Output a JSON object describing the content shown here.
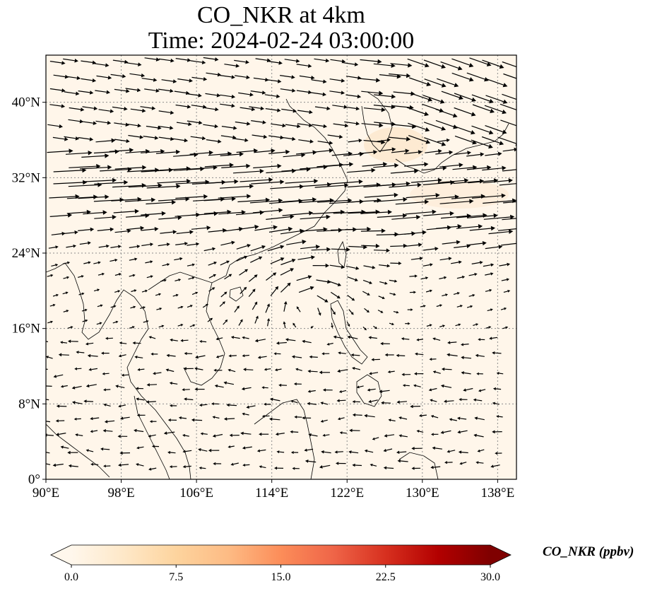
{
  "title": {
    "line1": "CO_NKR at 4km",
    "line2": "Time: 2024-02-24 03:00:00"
  },
  "map": {
    "lon_range": [
      90,
      140
    ],
    "lat_range": [
      0,
      45
    ],
    "lon_ticks": [
      {
        "value": 90,
        "label": "90°E"
      },
      {
        "value": 98,
        "label": "98°E"
      },
      {
        "value": 106,
        "label": "106°E"
      },
      {
        "value": 114,
        "label": "114°E"
      },
      {
        "value": 122,
        "label": "122°E"
      },
      {
        "value": 130,
        "label": "130°E"
      },
      {
        "value": 138,
        "label": "138°E"
      }
    ],
    "lat_ticks": [
      {
        "value": 0,
        "label": "0°"
      },
      {
        "value": 8,
        "label": "8°N"
      },
      {
        "value": 16,
        "label": "16°N"
      },
      {
        "value": 24,
        "label": "24°N"
      },
      {
        "value": 32,
        "label": "32°N"
      },
      {
        "value": 40,
        "label": "40°N"
      }
    ],
    "gridlines": true,
    "background_color": "#fff6ea"
  },
  "colorbar": {
    "label": "CO_NKR (ppbv)",
    "min": 0,
    "max": 30,
    "ticks": [
      {
        "value": 0,
        "label": "0.0"
      },
      {
        "value": 7.5,
        "label": "7.5"
      },
      {
        "value": 15,
        "label": "15.0"
      },
      {
        "value": 22.5,
        "label": "22.5"
      },
      {
        "value": 30,
        "label": "30.0"
      }
    ],
    "colors": [
      "#fff7ec",
      "#fee8c8",
      "#fdd49e",
      "#fdbb84",
      "#fc8d59",
      "#ef6548",
      "#d7301f",
      "#b30000",
      "#7f0000"
    ],
    "extend": "both"
  }
}
